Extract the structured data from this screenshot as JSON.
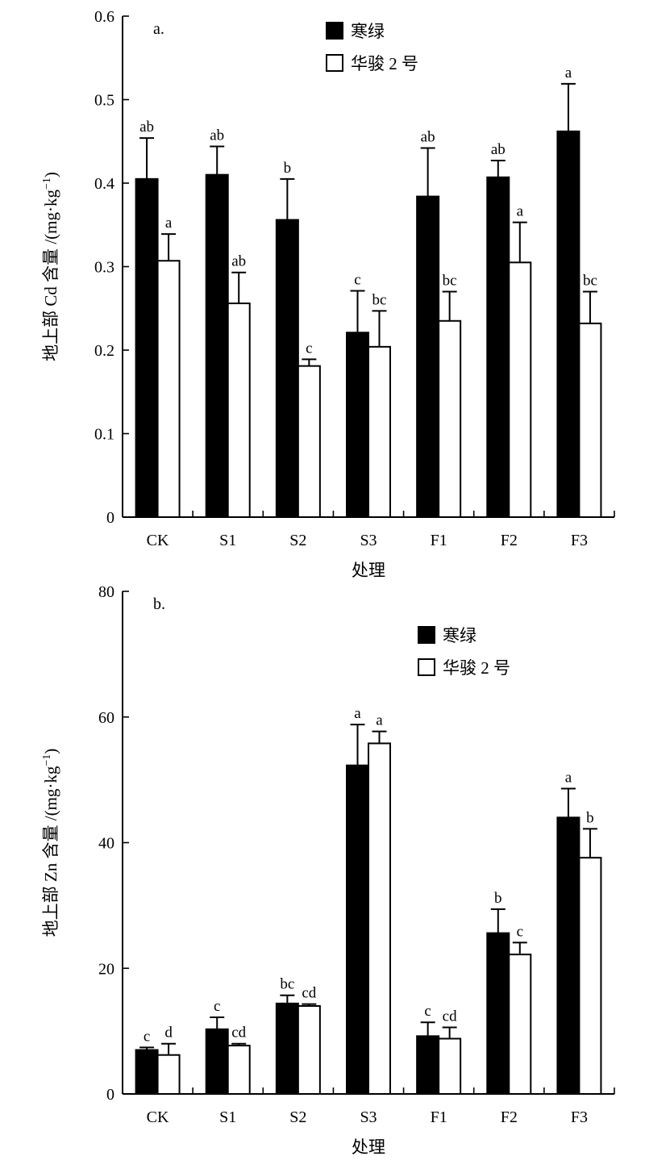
{
  "chart_data": [
    {
      "type": "bar",
      "panel_label": "a.",
      "categories": [
        "CK",
        "S1",
        "S2",
        "S3",
        "F1",
        "F2",
        "F3"
      ],
      "xlabel": "处理",
      "ylabel_text": "地上部 Cd 含量 /(mg·kg",
      "ylabel_sup": "−1",
      "ylabel_close": ")",
      "ylim": [
        0,
        0.6
      ],
      "yticks": [
        0,
        0.1,
        0.2,
        0.3,
        0.4,
        0.5,
        0.6
      ],
      "ytick_labels": [
        "0",
        "0.1",
        "0.2",
        "0.3",
        "0.4",
        "0.5",
        "0.6"
      ],
      "legend_position": "top-center",
      "grid": false,
      "series": [
        {
          "name": "寒绿",
          "color": "#000000",
          "values": [
            0.405,
            0.41,
            0.356,
            0.221,
            0.384,
            0.407,
            0.462
          ],
          "errors": [
            0.049,
            0.034,
            0.049,
            0.05,
            0.058,
            0.02,
            0.057
          ],
          "sig_labels": [
            "ab",
            "ab",
            "b",
            "c",
            "ab",
            "ab",
            "a"
          ]
        },
        {
          "name": "华骏 2 号",
          "color": "#ffffff",
          "values": [
            0.307,
            0.256,
            0.181,
            0.204,
            0.235,
            0.305,
            0.232
          ],
          "errors": [
            0.032,
            0.037,
            0.008,
            0.043,
            0.035,
            0.048,
            0.038
          ],
          "sig_labels": [
            "a",
            "ab",
            "c",
            "bc",
            "bc",
            "a",
            "bc"
          ]
        }
      ]
    },
    {
      "type": "bar",
      "panel_label": "b.",
      "categories": [
        "CK",
        "S1",
        "S2",
        "S3",
        "F1",
        "F2",
        "F3"
      ],
      "xlabel": "处理",
      "ylabel_text": "地上部 Zn 含量 /(mg·kg",
      "ylabel_sup": "−1",
      "ylabel_close": ")",
      "ylim": [
        0,
        80
      ],
      "yticks": [
        0,
        20,
        40,
        60,
        80
      ],
      "ytick_labels": [
        "0",
        "20",
        "40",
        "60",
        "80"
      ],
      "legend_position": "top-right",
      "grid": false,
      "series": [
        {
          "name": "寒绿",
          "color": "#000000",
          "values": [
            7.0,
            10.3,
            14.4,
            52.3,
            9.2,
            25.6,
            44.0
          ],
          "errors": [
            0.4,
            1.9,
            1.3,
            6.5,
            2.2,
            3.8,
            4.6
          ],
          "sig_labels": [
            "c",
            "c",
            "bc",
            "a",
            "c",
            "b",
            "a"
          ]
        },
        {
          "name": "华骏 2 号",
          "color": "#ffffff",
          "values": [
            6.2,
            7.7,
            14.0,
            55.8,
            8.8,
            22.2,
            37.6
          ],
          "errors": [
            1.8,
            0.3,
            0.3,
            1.9,
            1.8,
            1.9,
            4.6
          ],
          "sig_labels": [
            "d",
            "cd",
            "cd",
            "a",
            "cd",
            "c",
            "b"
          ]
        }
      ]
    }
  ]
}
